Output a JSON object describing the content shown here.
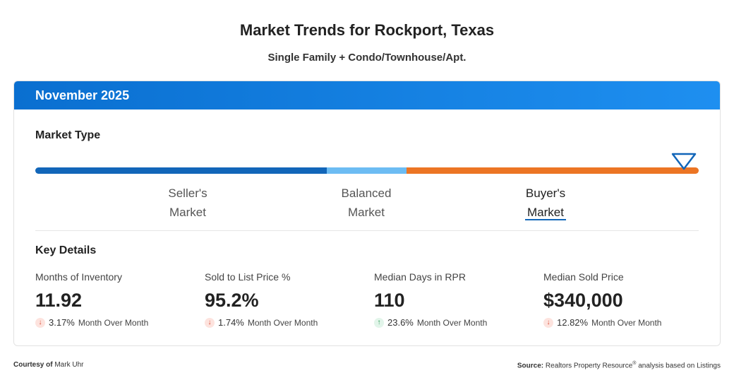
{
  "page": {
    "title": "Market Trends for Rockport, Texas",
    "subtitle": "Single Family + Condo/Townhouse/Apt."
  },
  "card": {
    "period": "November 2025",
    "market_type_label": "Market Type",
    "market_indicator": "Buyer's Market",
    "segments": {
      "seller_color": "#1266b9",
      "balanced_color": "#6cbcf3",
      "buyer_color": "#ec7524"
    },
    "labels": {
      "seller_line1": "Seller's",
      "seller_line2": "Market",
      "balanced_line1": "Balanced",
      "balanced_line2": "Market",
      "buyer_line1": "Buyer's",
      "buyer_line2": "Market"
    },
    "key_details_label": "Key Details",
    "metrics": [
      {
        "name": "Months of Inventory",
        "value": "11.92",
        "direction": "down",
        "change": "3.17%",
        "period": "Month Over Month"
      },
      {
        "name": "Sold to List Price %",
        "value": "95.2%",
        "direction": "down",
        "change": "1.74%",
        "period": "Month Over Month"
      },
      {
        "name": "Median Days in RPR",
        "value": "110",
        "direction": "up",
        "change": "23.6%",
        "period": "Month Over Month"
      },
      {
        "name": "Median Sold Price",
        "value": "$340,000",
        "direction": "down",
        "change": "12.82%",
        "period": "Month Over Month"
      }
    ]
  },
  "footer": {
    "courtesy_prefix": "Courtesy of",
    "courtesy_name": "Mark Uhr",
    "source_prefix": "Source:",
    "source_text": "Realtors Property Resource",
    "source_mark": "®",
    "source_suffix": "analysis based on Listings"
  }
}
